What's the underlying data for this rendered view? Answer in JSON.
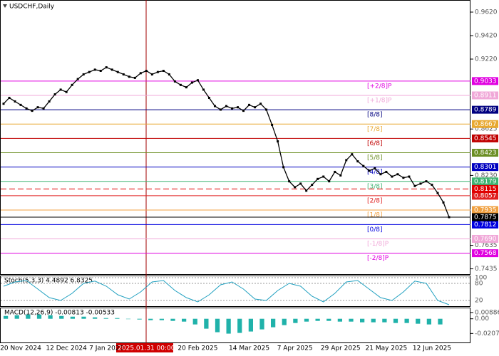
{
  "chart_data": {
    "type": "line",
    "title": "USDCHF,Daily",
    "color": "#000000",
    "categories": [
      null,
      null,
      null,
      "20 Nov 2024",
      null,
      null,
      null,
      null,
      null,
      null,
      null,
      "12 Dec 2024",
      null,
      null,
      null,
      null,
      null,
      null,
      "7 Jan 2025",
      null,
      null,
      null,
      null,
      null,
      null,
      "2025.01.31 00:00",
      null,
      null,
      null,
      null,
      null,
      null,
      null,
      null,
      "20 Feb 2025",
      null,
      null,
      null,
      null,
      null,
      null,
      null,
      null,
      "14 Mar 2025",
      null,
      null,
      null,
      null,
      null,
      null,
      null,
      "7 Apr 2025",
      null,
      null,
      null,
      null,
      null,
      null,
      null,
      "29 Apr 2025",
      null,
      null,
      null,
      null,
      null,
      null,
      null,
      "21 May 2025",
      null,
      null,
      null,
      null,
      null,
      null,
      null,
      "12 Jun 2025",
      null,
      null,
      null
    ],
    "values": [
      0.884,
      0.889,
      0.886,
      0.883,
      0.88,
      0.878,
      0.881,
      0.88,
      0.886,
      0.892,
      0.896,
      0.894,
      0.9,
      0.905,
      0.909,
      0.911,
      0.913,
      0.912,
      0.915,
      0.913,
      0.911,
      0.909,
      0.907,
      0.906,
      0.91,
      0.912,
      0.909,
      0.911,
      0.912,
      0.909,
      0.903,
      0.9,
      0.898,
      0.902,
      0.904,
      0.896,
      0.889,
      0.882,
      0.879,
      0.882,
      0.88,
      0.881,
      0.878,
      0.883,
      0.881,
      0.884,
      0.879,
      0.866,
      0.852,
      0.83,
      0.818,
      0.813,
      0.816,
      0.81,
      0.815,
      0.82,
      0.822,
      0.818,
      0.826,
      0.823,
      0.836,
      0.841,
      0.835,
      0.831,
      0.827,
      0.829,
      0.824,
      0.826,
      0.822,
      0.824,
      0.821,
      0.822,
      0.814,
      0.816,
      0.818,
      0.815,
      0.808,
      0.8,
      0.7875
    ],
    "ylim": [
      0.739,
      0.9723
    ],
    "yticks": [
      {
        "value": 0.962,
        "label": "0.9620"
      },
      {
        "value": 0.942,
        "label": "0.9420"
      },
      {
        "value": 0.922,
        "label": "0.9220"
      },
      0.8625,
      {
        "value": 0.823,
        "label": "0.8230"
      },
      0.7635,
      0.7435
    ],
    "levels": [
      {
        "name": "[+2/8]P",
        "value": 0.9033,
        "color": "#e000e0"
      },
      {
        "name": "[+1/8]P",
        "value": 0.8911,
        "color": "#f0a8d8"
      },
      {
        "name": "[8/8]",
        "value": 0.8789,
        "color": "#000080"
      },
      {
        "name": "[7/8]",
        "value": 0.8667,
        "color": "#e8a830"
      },
      {
        "name": "[6/8]",
        "value": 0.8545,
        "color": "#c00000"
      },
      {
        "name": "[5/8]",
        "value": 0.8423,
        "color": "#6b8e23"
      },
      {
        "name": "[4/8]",
        "value": 0.8301,
        "color": "#0000c0"
      },
      {
        "name": "[3/8]",
        "value": 0.8179,
        "color": "#3cb371"
      },
      {
        "name": "[2/8]",
        "value": 0.8057,
        "color": "#e02020"
      },
      {
        "name": "[1/8]",
        "value": 0.7935,
        "color": "#f0a040"
      },
      {
        "name": "[0/8]",
        "value": 0.7812,
        "color": "#0000e0"
      },
      {
        "name": "[-1/8]P",
        "value": {
          "value": 0.769,
          "label": "0.7690"
        },
        "color": "#f0a8d8"
      },
      {
        "name": "[-2/8]P",
        "value": 0.7568,
        "color": "#e000e0"
      }
    ],
    "price_lines": [
      {
        "value": 0.8115,
        "color": "#e00000",
        "dashed": true
      },
      {
        "value": 0.7875,
        "color": "#000000",
        "dashed": false
      }
    ],
    "stochastic": {
      "title": "Stoch(5,3,3) 4.4892 6.8325",
      "color": "#20a0c0",
      "ylim": [
        0,
        100
      ],
      "yticks": [
        100,
        80,
        20
      ],
      "values": [
        70,
        85,
        90,
        60,
        30,
        20,
        45,
        80,
        88,
        70,
        40,
        25,
        50,
        85,
        90,
        55,
        30,
        15,
        40,
        75,
        85,
        60,
        25,
        20,
        55,
        80,
        70,
        35,
        15,
        45,
        85,
        90,
        60,
        30,
        20,
        50,
        88,
        80,
        20,
        5
      ]
    },
    "macd": {
      "title": "MACD(12,26,9) -0.00813 -0.00533",
      "color": "#20b2aa",
      "ylim": [
        -0.0335,
        0.0148
      ],
      "yticks": [
        0.00886,
        {
          "value": 0,
          "label": "0.00"
        },
        -0.02075
      ],
      "values": [
        0.004,
        0.005,
        0.006,
        0.006,
        0.005,
        0.004,
        0.003,
        0.003,
        0.002,
        0.001,
        0.001,
        0.0,
        -0.001,
        -0.002,
        -0.002,
        -0.003,
        -0.004,
        -0.008,
        -0.014,
        -0.019,
        -0.021,
        -0.02,
        -0.018,
        -0.015,
        -0.012,
        -0.009,
        -0.006,
        -0.004,
        -0.003,
        -0.003,
        -0.004,
        -0.004,
        -0.005,
        -0.005,
        -0.005,
        -0.006,
        -0.006,
        -0.007,
        -0.008,
        -0.008
      ]
    }
  }
}
